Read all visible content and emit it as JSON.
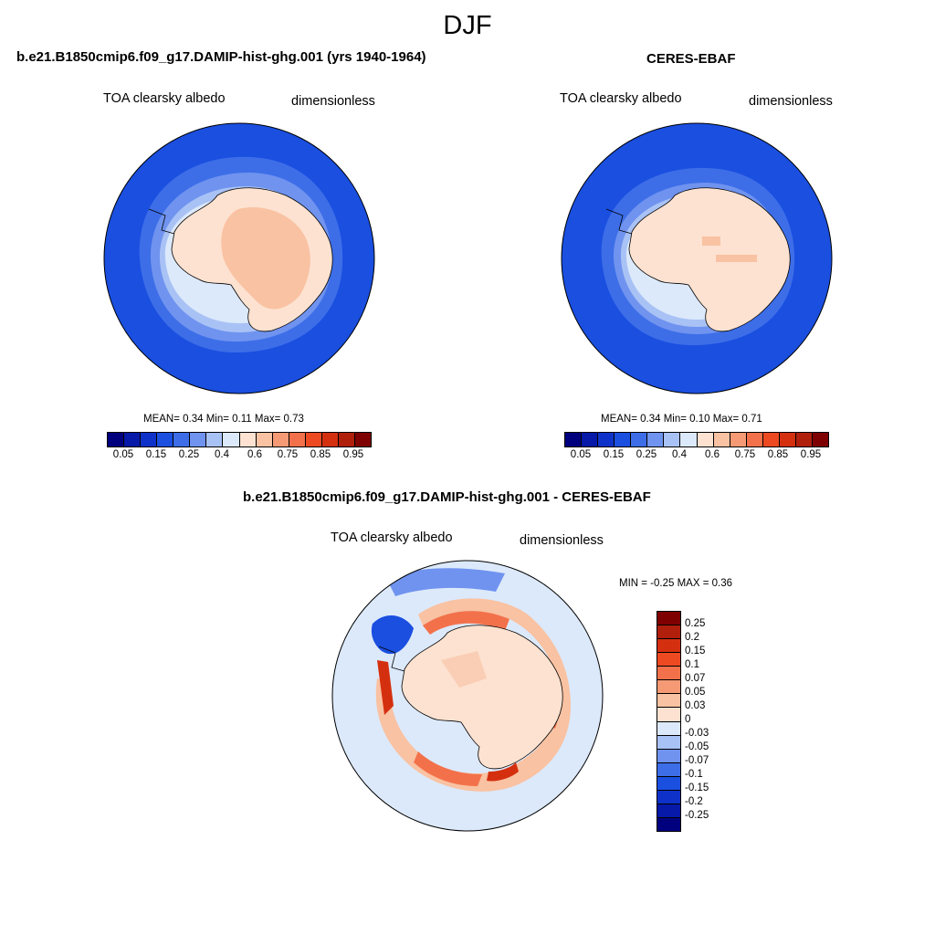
{
  "season": "DJF",
  "panels": [
    {
      "title": "b.e21.B1850cmip6.f09_g17.DAMIP-hist-ghg.001 (yrs 1940-1964)",
      "variable": "TOA clearsky albedo",
      "units": "dimensionless",
      "stats": "MEAN=   0.34  Min=    0.11  Max=    0.73"
    },
    {
      "title": "CERES-EBAF",
      "variable": "TOA clearsky albedo",
      "units": "dimensionless",
      "stats": "MEAN=   0.34  Min=    0.10  Max=    0.71"
    },
    {
      "title": "b.e21.B1850cmip6.f09_g17.DAMIP-hist-ghg.001 - CERES-EBAF",
      "variable": "TOA clearsky albedo",
      "units": "dimensionless",
      "stats": "MIN =  -0.25 MAX =   0.36"
    }
  ],
  "colorbar_main": {
    "colors": [
      "#00007f",
      "#0619a8",
      "#0e32c9",
      "#1a4fe0",
      "#3d6ee8",
      "#6f93ef",
      "#a9c2f5",
      "#dce9fb",
      "#fde2d1",
      "#f9c2a2",
      "#f59a74",
      "#f3714a",
      "#ed4a22",
      "#d43010",
      "#b01e0c",
      "#7f0000"
    ],
    "ticks": [
      "0.05",
      "0.15",
      "0.25",
      "0.4",
      "0.6",
      "0.75",
      "0.85",
      "0.95"
    ]
  },
  "colorbar_diff": {
    "colors": [
      "#7f0000",
      "#b01e0c",
      "#d43010",
      "#ed4a22",
      "#f3714a",
      "#f59a74",
      "#f9c2a2",
      "#fde2d1",
      "#dce9fb",
      "#a9c2f5",
      "#6f93ef",
      "#3d6ee8",
      "#1a4fe0",
      "#0e32c9",
      "#0619a8",
      "#00007f"
    ],
    "ticks": [
      "0.25",
      "0.2",
      "0.15",
      "0.1",
      "0.07",
      "0.05",
      "0.03",
      "0",
      "-0.03",
      "-0.05",
      "-0.07",
      "-0.1",
      "-0.15",
      "-0.2",
      "-0.25"
    ]
  },
  "map_colors": {
    "ocean_deep": "#1a4fe0",
    "ocean_mid": "#3d6ee8",
    "ocean_light": "#6f93ef",
    "ocean_pale": "#a9c2f5",
    "ice_edge": "#dce9fb",
    "land_low": "#fde2d1",
    "land_mid": "#f9c2a2",
    "diff_bg": "#dce9fb",
    "diff_pos": "#f3714a",
    "diff_pos_strong": "#d43010",
    "diff_neg": "#1a4fe0"
  }
}
